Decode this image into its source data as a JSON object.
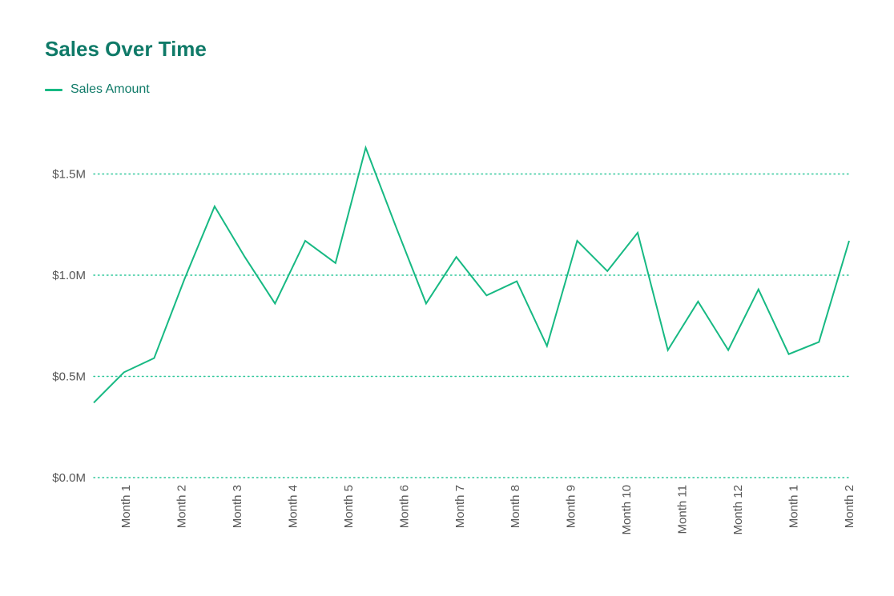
{
  "title": "Sales Over Time",
  "colors": {
    "title": "#0f7a68",
    "series": "#17b983",
    "grid": "#2fc79a",
    "tick_text": "#555555"
  },
  "chart_data": {
    "type": "line",
    "title": "Sales Over Time",
    "xlabel": "",
    "ylabel": "",
    "legend": "top-left",
    "grid": true,
    "ylim": [
      0,
      1.6
    ],
    "y_unit": "M",
    "y_ticks": [
      0.0,
      0.5,
      1.0,
      1.5
    ],
    "y_tick_labels": [
      "$0.0M",
      "$0.5M",
      "$1.0M",
      "$1.5M"
    ],
    "x_tick_labels": [
      "Month 1",
      "Month 2",
      "Month 3",
      "Month 4",
      "Month 5",
      "Month 6",
      "Month 7",
      "Month 8",
      "Month 9",
      "Month 10",
      "Month 11",
      "Month 12",
      "Month 1",
      "Month 2"
    ],
    "series": [
      {
        "name": "Sales Amount",
        "values": [
          0.37,
          0.52,
          0.59,
          0.98,
          1.34,
          1.09,
          0.86,
          1.17,
          1.06,
          1.63,
          1.24,
          0.86,
          1.09,
          0.9,
          0.97,
          0.65,
          1.17,
          1.02,
          1.21,
          0.63,
          0.87,
          0.63,
          0.93,
          0.61,
          0.67,
          1.17
        ]
      }
    ]
  }
}
